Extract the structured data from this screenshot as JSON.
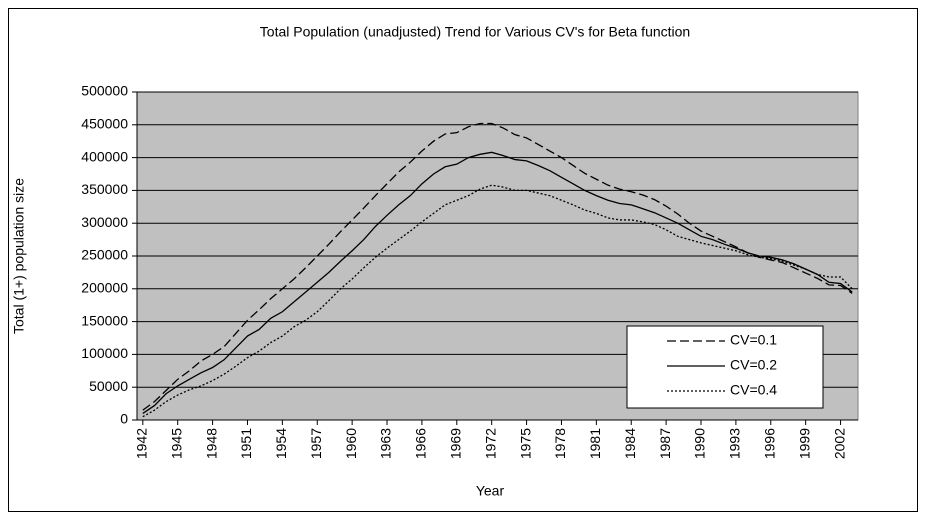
{
  "chart_data": {
    "type": "line",
    "title": "Total Population (unadjusted) Trend for Various CV's for Beta function",
    "x_label": "Year",
    "y_label": "Total (1+) population size",
    "x": [
      1942,
      1943,
      1944,
      1945,
      1946,
      1947,
      1948,
      1949,
      1950,
      1951,
      1952,
      1953,
      1954,
      1955,
      1956,
      1957,
      1958,
      1959,
      1960,
      1961,
      1962,
      1963,
      1964,
      1965,
      1966,
      1967,
      1968,
      1969,
      1970,
      1971,
      1972,
      1973,
      1974,
      1975,
      1976,
      1977,
      1978,
      1979,
      1980,
      1981,
      1982,
      1983,
      1984,
      1985,
      1986,
      1987,
      1988,
      1989,
      1990,
      1991,
      1992,
      1993,
      1994,
      1995,
      1996,
      1997,
      1998,
      1999,
      2000,
      2001,
      2002,
      2003
    ],
    "series": [
      {
        "name": "CV=0.1",
        "color": "#000000",
        "dash": "dashed",
        "values": [
          15000,
          28000,
          45000,
          62000,
          75000,
          90000,
          100000,
          112000,
          132000,
          152000,
          168000,
          185000,
          200000,
          215000,
          232000,
          250000,
          268000,
          287000,
          305000,
          323000,
          342000,
          360000,
          378000,
          393000,
          410000,
          425000,
          436000,
          438000,
          447000,
          452000,
          452000,
          445000,
          435000,
          430000,
          420000,
          410000,
          400000,
          388000,
          376000,
          367000,
          358000,
          352000,
          348000,
          343000,
          336000,
          326000,
          314000,
          300000,
          288000,
          280000,
          272000,
          264000,
          255000,
          248000,
          244000,
          240000,
          232000,
          224000,
          216000,
          206000,
          205000,
          193000
        ]
      },
      {
        "name": "CV=0.2",
        "color": "#000000",
        "dash": "solid",
        "values": [
          10000,
          22000,
          40000,
          52000,
          62000,
          72000,
          80000,
          92000,
          110000,
          128000,
          138000,
          155000,
          165000,
          180000,
          195000,
          210000,
          225000,
          242000,
          258000,
          275000,
          295000,
          312000,
          328000,
          342000,
          360000,
          375000,
          386000,
          390000,
          400000,
          405000,
          408000,
          403000,
          397000,
          395000,
          388000,
          380000,
          370000,
          360000,
          350000,
          342000,
          335000,
          330000,
          328000,
          322000,
          316000,
          308000,
          300000,
          290000,
          280000,
          275000,
          268000,
          262000,
          255000,
          250000,
          248000,
          244000,
          238000,
          230000,
          222000,
          210000,
          208000,
          195000
        ]
      },
      {
        "name": "CV=0.4",
        "color": "#000000",
        "dash": "dotted",
        "values": [
          5000,
          15000,
          28000,
          38000,
          46000,
          52000,
          60000,
          70000,
          82000,
          95000,
          105000,
          118000,
          128000,
          142000,
          152000,
          165000,
          182000,
          200000,
          215000,
          232000,
          248000,
          262000,
          275000,
          288000,
          302000,
          315000,
          328000,
          335000,
          342000,
          352000,
          358000,
          355000,
          350000,
          350000,
          346000,
          342000,
          335000,
          328000,
          320000,
          315000,
          308000,
          305000,
          305000,
          302000,
          298000,
          290000,
          280000,
          275000,
          270000,
          266000,
          262000,
          258000,
          252000,
          248000,
          246000,
          242000,
          236000,
          230000,
          222000,
          218000,
          218000,
          200000
        ]
      }
    ],
    "xlim": [
      1941.5,
      2003.5
    ],
    "xticks": [
      1942,
      1945,
      1948,
      1951,
      1954,
      1957,
      1960,
      1963,
      1966,
      1969,
      1972,
      1975,
      1978,
      1981,
      1984,
      1987,
      1990,
      1993,
      1996,
      1999,
      2002
    ],
    "ylim": [
      0,
      500000
    ],
    "yticks": [
      0,
      50000,
      100000,
      150000,
      200000,
      250000,
      300000,
      350000,
      400000,
      450000,
      500000
    ],
    "grid": true,
    "plot_background": "#c0c0c0",
    "legend": "lower right"
  }
}
